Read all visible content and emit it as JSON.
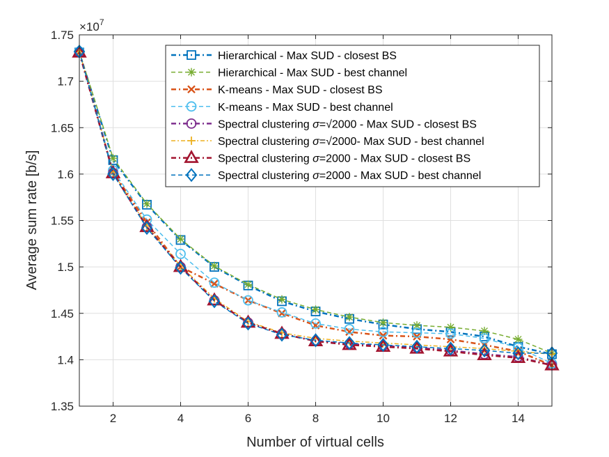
{
  "chart_data": {
    "type": "line",
    "title": "",
    "xlabel": "Number of virtual cells",
    "ylabel": "Average sum rate [b/s]",
    "y_exponent_label": "×10",
    "y_exponent_power": "7",
    "xlim": [
      1,
      15
    ],
    "ylim": [
      1.35,
      1.75
    ],
    "xticks": [
      2,
      4,
      6,
      8,
      10,
      12,
      14
    ],
    "xtick_labels": [
      "2",
      "4",
      "6",
      "8",
      "10",
      "12",
      "14"
    ],
    "yticks": [
      1.35,
      1.4,
      1.45,
      1.5,
      1.55,
      1.6,
      1.65,
      1.7,
      1.75
    ],
    "ytick_labels": [
      "1.35",
      "1.4",
      "1.45",
      "1.5",
      "1.55",
      "1.6",
      "1.65",
      "1.7",
      "1.75"
    ],
    "grid": true,
    "legend_position": "top-right",
    "x": [
      1,
      2,
      3,
      4,
      5,
      6,
      7,
      8,
      9,
      10,
      11,
      12,
      13,
      14,
      15
    ],
    "series": [
      {
        "name": "Hierarchical - Max SUD - closest BS",
        "legend_parts": [
          {
            "t": "Hierarchical - Max SUD - closest BS"
          }
        ],
        "color": "#0072BD",
        "marker": "square",
        "dash": "7,4,2,4",
        "width": 2.5,
        "values": [
          1.731,
          1.615,
          1.567,
          1.529,
          1.5,
          1.48,
          1.463,
          1.452,
          1.444,
          1.438,
          1.433,
          1.43,
          1.425,
          1.414,
          1.406
        ]
      },
      {
        "name": "Hierarchical - Max SUD - best channel",
        "legend_parts": [
          {
            "t": "Hierarchical - Max SUD - best channel"
          }
        ],
        "color": "#77AC30",
        "marker": "asterisk",
        "dash": "6,4",
        "width": 1.5,
        "values": [
          1.732,
          1.617,
          1.568,
          1.53,
          1.501,
          1.481,
          1.465,
          1.454,
          1.446,
          1.44,
          1.437,
          1.435,
          1.431,
          1.422,
          1.407
        ]
      },
      {
        "name": "K-means - Max SUD - closest BS",
        "legend_parts": [
          {
            "t": "K-means - Max SUD - closest BS"
          }
        ],
        "color": "#D95319",
        "marker": "x",
        "dash": "7,4,2,4",
        "width": 2.5,
        "values": [
          1.731,
          1.602,
          1.548,
          1.5,
          1.482,
          1.464,
          1.45,
          1.437,
          1.43,
          1.426,
          1.425,
          1.422,
          1.416,
          1.409,
          1.394
        ]
      },
      {
        "name": "K-means - Max SUD - best channel",
        "legend_parts": [
          {
            "t": "K-means - Max SUD - best channel"
          }
        ],
        "color": "#4DBEEE",
        "marker": "circle",
        "dash": "6,4",
        "width": 1.5,
        "values": [
          1.732,
          1.604,
          1.551,
          1.514,
          1.483,
          1.464,
          1.451,
          1.439,
          1.433,
          1.43,
          1.429,
          1.428,
          1.423,
          1.413,
          1.396
        ]
      },
      {
        "name": "Spectral clustering σ=√2000 - Max SUD - closest BS",
        "legend_parts": [
          {
            "t": "Spectral clustering "
          },
          {
            "t": "σ",
            "i": true
          },
          {
            "t": "=√2000 - Max SUD - closest BS"
          }
        ],
        "color": "#7E2F8E",
        "marker": "circle",
        "dash": "7,4,2,4",
        "width": 2.5,
        "values": [
          1.731,
          1.601,
          1.543,
          1.5,
          1.464,
          1.44,
          1.428,
          1.42,
          1.417,
          1.415,
          1.413,
          1.41,
          1.406,
          1.403,
          1.394
        ]
      },
      {
        "name": "Spectral clustering σ=√2000- Max SUD - best channel",
        "legend_parts": [
          {
            "t": "Spectral clustering "
          },
          {
            "t": "σ",
            "i": true
          },
          {
            "t": "=√2000- Max SUD - best channel"
          }
        ],
        "color": "#EDB120",
        "marker": "plus",
        "dash": "6,3,2,3",
        "width": 1.5,
        "values": [
          1.732,
          1.602,
          1.544,
          1.501,
          1.466,
          1.441,
          1.429,
          1.423,
          1.42,
          1.418,
          1.416,
          1.414,
          1.412,
          1.409,
          1.406
        ]
      },
      {
        "name": "Spectral clustering σ=2000 - Max SUD - closest BS",
        "legend_parts": [
          {
            "t": "Spectral clustering "
          },
          {
            "t": "σ",
            "i": true
          },
          {
            "t": "=2000 - Max SUD - closest BS"
          }
        ],
        "color": "#A2142F",
        "marker": "triangle",
        "dash": "7,4,2,4",
        "width": 2.5,
        "values": [
          1.731,
          1.601,
          1.543,
          1.5,
          1.464,
          1.44,
          1.428,
          1.42,
          1.416,
          1.414,
          1.412,
          1.409,
          1.405,
          1.402,
          1.394
        ]
      },
      {
        "name": "Spectral clustering σ=2000 - Max SUD - best channel",
        "legend_parts": [
          {
            "t": "Spectral clustering "
          },
          {
            "t": "σ",
            "i": true
          },
          {
            "t": "=2000 - Max SUD - best channel"
          }
        ],
        "color": "#0072BD",
        "marker": "diamond",
        "dash": "6,4",
        "width": 1.5,
        "values": [
          1.732,
          1.6,
          1.542,
          1.499,
          1.463,
          1.439,
          1.427,
          1.421,
          1.418,
          1.416,
          1.414,
          1.412,
          1.41,
          1.407,
          1.407
        ]
      }
    ]
  }
}
